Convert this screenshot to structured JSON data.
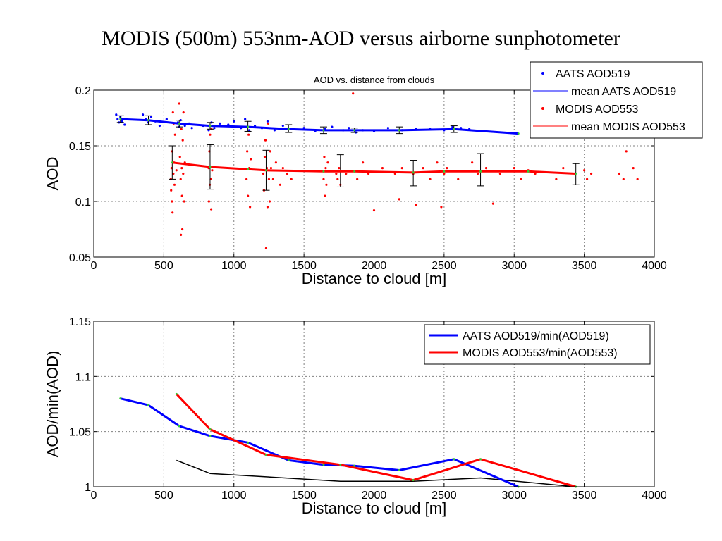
{
  "slide_title": "MODIS (500m) 553nm-AOD versus airborne sunphotometer",
  "colors": {
    "aats": "#0000ff",
    "modis": "#ff0000",
    "ratio_diff": "#000000",
    "errorbar": "#000000",
    "vertex": "#33cc33",
    "grid": "#808080"
  },
  "chart_data": [
    {
      "type": "scatter",
      "title": "AOD vs. distance from clouds",
      "xlabel": "Distance to cloud [m]",
      "ylabel": "AOD",
      "xlim": [
        0,
        4000
      ],
      "ylim": [
        0.05,
        0.2
      ],
      "xticks": [
        "0",
        "500",
        "1000",
        "1500",
        "2000",
        "2500",
        "3000",
        "3500",
        "4000"
      ],
      "yticks": [
        "0.05",
        "0.1",
        "0.15",
        "0.2"
      ],
      "grid": true,
      "legend_position": "top-right",
      "series": [
        {
          "name": "AATS AOD519",
          "kind": "points",
          "color": "#0000ff",
          "points": [
            [
              160,
              0.178
            ],
            [
              170,
              0.174
            ],
            [
              180,
              0.171
            ],
            [
              190,
              0.176
            ],
            [
              200,
              0.172
            ],
            [
              220,
              0.169
            ],
            [
              350,
              0.178
            ],
            [
              370,
              0.174
            ],
            [
              390,
              0.171
            ],
            [
              410,
              0.176
            ],
            [
              440,
              0.172
            ],
            [
              470,
              0.168
            ],
            [
              520,
              0.174
            ],
            [
              600,
              0.171
            ],
            [
              610,
              0.167
            ],
            [
              620,
              0.173
            ],
            [
              650,
              0.168
            ],
            [
              680,
              0.17
            ],
            [
              700,
              0.166
            ],
            [
              780,
              0.168
            ],
            [
              820,
              0.164
            ],
            [
              840,
              0.171
            ],
            [
              860,
              0.166
            ],
            [
              900,
              0.17
            ],
            [
              960,
              0.169
            ],
            [
              1000,
              0.172
            ],
            [
              1050,
              0.166
            ],
            [
              1080,
              0.174
            ],
            [
              1110,
              0.164
            ],
            [
              1150,
              0.168
            ],
            [
              1200,
              0.166
            ],
            [
              1240,
              0.172
            ],
            [
              1290,
              0.164
            ],
            [
              1350,
              0.168
            ],
            [
              1420,
              0.165
            ],
            [
              1500,
              0.166
            ],
            [
              1580,
              0.163
            ],
            [
              1650,
              0.165
            ],
            [
              1700,
              0.167
            ],
            [
              1780,
              0.164
            ],
            [
              1820,
              0.166
            ],
            [
              1870,
              0.162
            ],
            [
              1920,
              0.164
            ],
            [
              2000,
              0.163
            ],
            [
              2100,
              0.166
            ],
            [
              2200,
              0.164
            ],
            [
              2300,
              0.165
            ],
            [
              2400,
              0.165
            ],
            [
              2500,
              0.164
            ],
            [
              2560,
              0.167
            ],
            [
              2620,
              0.166
            ],
            [
              2680,
              0.165
            ]
          ]
        },
        {
          "name": "mean AATS AOD519",
          "kind": "line",
          "color": "#0000ff",
          "points": [
            [
              190,
              0.174
            ],
            [
              390,
              0.173
            ],
            [
              610,
              0.17
            ],
            [
              830,
              0.168
            ],
            [
              1100,
              0.167
            ],
            [
              1390,
              0.165
            ],
            [
              1640,
              0.164
            ],
            [
              1860,
              0.164
            ],
            [
              2180,
              0.164
            ],
            [
              2570,
              0.165
            ],
            [
              3030,
              0.161
            ]
          ]
        },
        {
          "name": "MODIS AOD553",
          "kind": "points",
          "color": "#ff0000",
          "points": [
            [
              550,
              0.12
            ],
            [
              552,
              0.11
            ],
            [
              555,
              0.13
            ],
            [
              558,
              0.1
            ],
            [
              560,
              0.145
            ],
            [
              562,
              0.09
            ],
            [
              565,
              0.18
            ],
            [
              568,
              0.125
            ],
            [
              570,
              0.17
            ],
            [
              573,
              0.135
            ],
            [
              576,
              0.115
            ],
            [
              580,
              0.16
            ],
            [
              590,
              0.128
            ],
            [
              610,
              0.188
            ],
            [
              615,
              0.14
            ],
            [
              620,
              0.12
            ],
            [
              622,
              0.07
            ],
            [
              625,
              0.165
            ],
            [
              628,
              0.13
            ],
            [
              630,
              0.105
            ],
            [
              632,
              0.075
            ],
            [
              635,
              0.155
            ],
            [
              638,
              0.125
            ],
            [
              640,
              0.18
            ],
            [
              645,
              0.1
            ],
            [
              650,
              0.135
            ],
            [
              820,
              0.13
            ],
            [
              822,
              0.1
            ],
            [
              825,
              0.145
            ],
            [
              828,
              0.115
            ],
            [
              830,
              0.16
            ],
            [
              835,
              0.12
            ],
            [
              838,
              0.093
            ],
            [
              840,
              0.165
            ],
            [
              845,
              0.128
            ],
            [
              1090,
              0.12
            ],
            [
              1095,
              0.145
            ],
            [
              1100,
              0.105
            ],
            [
              1105,
              0.16
            ],
            [
              1110,
              0.13
            ],
            [
              1115,
              0.095
            ],
            [
              1120,
              0.138
            ],
            [
              1210,
              0.125
            ],
            [
              1215,
              0.11
            ],
            [
              1220,
              0.14
            ],
            [
              1225,
              0.155
            ],
            [
              1230,
              0.058
            ],
            [
              1235,
              0.13
            ],
            [
              1240,
              0.095
            ],
            [
              1245,
              0.17
            ],
            [
              1250,
              0.12
            ],
            [
              1255,
              0.1
            ],
            [
              1260,
              0.145
            ],
            [
              1265,
              0.13
            ],
            [
              1280,
              0.12
            ],
            [
              1300,
              0.135
            ],
            [
              1330,
              0.115
            ],
            [
              1350,
              0.13
            ],
            [
              1380,
              0.125
            ],
            [
              1410,
              0.12
            ],
            [
              1640,
              0.12
            ],
            [
              1645,
              0.14
            ],
            [
              1650,
              0.105
            ],
            [
              1655,
              0.13
            ],
            [
              1660,
              0.115
            ],
            [
              1670,
              0.135
            ],
            [
              1730,
              0.125
            ],
            [
              1740,
              0.12
            ],
            [
              1750,
              0.13
            ],
            [
              1760,
              0.115
            ],
            [
              1800,
              0.125
            ],
            [
              1850,
              0.197
            ],
            [
              1880,
              0.12
            ],
            [
              1920,
              0.135
            ],
            [
              1960,
              0.125
            ],
            [
              2000,
              0.092
            ],
            [
              2060,
              0.13
            ],
            [
              2150,
              0.125
            ],
            [
              2180,
              0.102
            ],
            [
              2200,
              0.13
            ],
            [
              2280,
              0.125
            ],
            [
              2300,
              0.097
            ],
            [
              2350,
              0.13
            ],
            [
              2400,
              0.12
            ],
            [
              2450,
              0.135
            ],
            [
              2480,
              0.095
            ],
            [
              2500,
              0.125
            ],
            [
              2520,
              0.13
            ],
            [
              2600,
              0.12
            ],
            [
              2700,
              0.135
            ],
            [
              2740,
              0.125
            ],
            [
              2800,
              0.13
            ],
            [
              2850,
              0.098
            ],
            [
              2900,
              0.125
            ],
            [
              3000,
              0.13
            ],
            [
              3050,
              0.12
            ],
            [
              3100,
              0.128
            ],
            [
              3150,
              0.125
            ],
            [
              3300,
              0.12
            ],
            [
              3350,
              0.13
            ],
            [
              3500,
              0.128
            ],
            [
              3520,
              0.12
            ],
            [
              3550,
              0.125
            ],
            [
              3750,
              0.125
            ],
            [
              3780,
              0.12
            ],
            [
              3800,
              0.145
            ],
            [
              3850,
              0.13
            ],
            [
              3880,
              0.12
            ]
          ]
        },
        {
          "name": "mean MODIS AOD553",
          "kind": "line",
          "color": "#ff0000",
          "points": [
            [
              560,
              0.135
            ],
            [
              830,
              0.131
            ],
            [
              1100,
              0.129
            ],
            [
              1230,
              0.128
            ],
            [
              1640,
              0.127
            ],
            [
              1860,
              0.127
            ],
            [
              2280,
              0.126
            ],
            [
              2500,
              0.127
            ],
            [
              2760,
              0.127
            ],
            [
              3100,
              0.127
            ],
            [
              3440,
              0.125
            ]
          ]
        }
      ],
      "errorbars": [
        {
          "x": 190,
          "y": 0.174,
          "low": 0.171,
          "high": 0.177
        },
        {
          "x": 390,
          "y": 0.173,
          "low": 0.169,
          "high": 0.177
        },
        {
          "x": 610,
          "y": 0.17,
          "low": 0.167,
          "high": 0.173
        },
        {
          "x": 830,
          "y": 0.168,
          "low": 0.165,
          "high": 0.171
        },
        {
          "x": 1100,
          "y": 0.167,
          "low": 0.163,
          "high": 0.172
        },
        {
          "x": 1390,
          "y": 0.165,
          "low": 0.162,
          "high": 0.169
        },
        {
          "x": 1640,
          "y": 0.164,
          "low": 0.161,
          "high": 0.167
        },
        {
          "x": 1860,
          "y": 0.164,
          "low": 0.162,
          "high": 0.166
        },
        {
          "x": 2180,
          "y": 0.164,
          "low": 0.161,
          "high": 0.167
        },
        {
          "x": 2570,
          "y": 0.165,
          "low": 0.162,
          "high": 0.168
        },
        {
          "x": 560,
          "y": 0.135,
          "low": 0.12,
          "high": 0.15
        },
        {
          "x": 830,
          "y": 0.131,
          "low": 0.111,
          "high": 0.151
        },
        {
          "x": 1230,
          "y": 0.128,
          "low": 0.11,
          "high": 0.146
        },
        {
          "x": 1760,
          "y": 0.127,
          "low": 0.113,
          "high": 0.142
        },
        {
          "x": 2280,
          "y": 0.126,
          "low": 0.114,
          "high": 0.137
        },
        {
          "x": 2760,
          "y": 0.127,
          "low": 0.114,
          "high": 0.143
        },
        {
          "x": 3440,
          "y": 0.125,
          "low": 0.115,
          "high": 0.134
        }
      ]
    },
    {
      "type": "line",
      "title": "",
      "xlabel": "Distance to cloud [m]",
      "ylabel": "AOD/min(AOD)",
      "xlim": [
        0,
        4000
      ],
      "ylim": [
        1,
        1.15
      ],
      "xticks": [
        "0",
        "500",
        "1000",
        "1500",
        "2000",
        "2500",
        "3000",
        "3500",
        "4000"
      ],
      "yticks": [
        "1",
        "1.05",
        "1.1",
        "1.15"
      ],
      "grid": true,
      "legend_position": "top-right",
      "series": [
        {
          "name": "AATS AOD519/min(AOD519)",
          "color": "#0000ff",
          "in_legend": true,
          "points": [
            [
              190,
              1.08
            ],
            [
              390,
              1.074
            ],
            [
              610,
              1.055
            ],
            [
              830,
              1.046
            ],
            [
              1100,
              1.04
            ],
            [
              1390,
              1.024
            ],
            [
              1640,
              1.02
            ],
            [
              1860,
              1.019
            ],
            [
              2180,
              1.015
            ],
            [
              2570,
              1.025
            ],
            [
              3030,
              1.0
            ]
          ]
        },
        {
          "name": "MODIS AOD553/min(AOD553)",
          "color": "#ff0000",
          "in_legend": true,
          "points": [
            [
              590,
              1.084
            ],
            [
              830,
              1.052
            ],
            [
              1230,
              1.029
            ],
            [
              1760,
              1.02
            ],
            [
              2280,
              1.006
            ],
            [
              2760,
              1.025
            ],
            [
              3440,
              1.0
            ]
          ]
        },
        {
          "name": "",
          "color": "#000000",
          "in_legend": false,
          "points": [
            [
              590,
              1.024
            ],
            [
              830,
              1.012
            ],
            [
              1230,
              1.009
            ],
            [
              1760,
              1.005
            ],
            [
              2280,
              1.005
            ],
            [
              2760,
              1.008
            ],
            [
              3440,
              1.0
            ]
          ]
        }
      ]
    }
  ]
}
